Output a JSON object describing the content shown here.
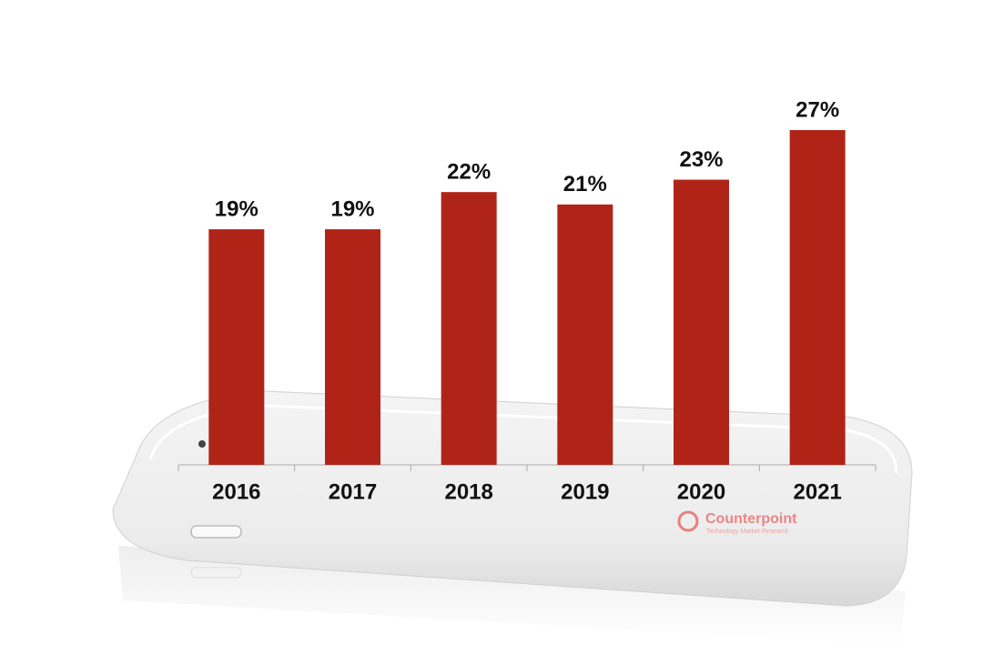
{
  "chart_data": {
    "type": "bar",
    "categories": [
      "2016",
      "2017",
      "2018",
      "2019",
      "2020",
      "2021"
    ],
    "values": [
      19,
      19,
      22,
      21,
      23,
      27
    ],
    "value_labels": [
      "19%",
      "19%",
      "22%",
      "21%",
      "23%",
      "27%"
    ],
    "color": "#b02418",
    "logo": {
      "name": "Counterpoint",
      "tagline": "Technology Market Research"
    }
  }
}
